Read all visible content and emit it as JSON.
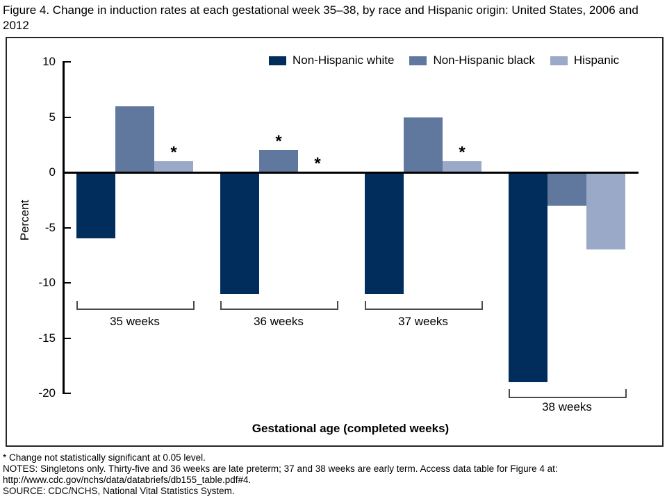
{
  "title": "Figure 4. Change in induction rates at each gestational week 35–38, by race and Hispanic origin: United States, 2006 and 2012",
  "chart_data": {
    "type": "bar",
    "categories": [
      "35 weeks",
      "36 weeks",
      "37 weeks",
      "38 weeks"
    ],
    "series": [
      {
        "name": "Non-Hispanic white",
        "color": "#002D5C",
        "values": [
          -6,
          -11,
          -11,
          -19
        ],
        "starred": [
          false,
          false,
          false,
          false
        ]
      },
      {
        "name": "Non-Hispanic black",
        "color": "#60779E",
        "values": [
          6,
          2,
          5,
          -3
        ],
        "starred": [
          false,
          true,
          false,
          false
        ]
      },
      {
        "name": "Hispanic",
        "color": "#9AA9C7",
        "values": [
          1,
          0,
          1,
          -7
        ],
        "starred": [
          true,
          true,
          true,
          false
        ]
      }
    ],
    "title": "",
    "xlabel": "Gestational age (completed weeks)",
    "ylabel": "Percent",
    "ylim": [
      -20,
      10
    ],
    "yticks": [
      10,
      5,
      0,
      -5,
      -10,
      -15,
      -20
    ],
    "legend_position": "top",
    "grid": "off",
    "star_marker": "*"
  },
  "footnotes": [
    "* Change not statistically significant at 0.05 level.",
    "NOTES: Singletons only. Thirty-five and 36 weeks are late preterm; 37 and 38 weeks are early term. Access data table for Figure 4 at: http://www.cdc.gov/nchs/data/databriefs/db155_table.pdf#4.",
    "SOURCE: CDC/NCHS, National Vital Statistics System."
  ]
}
